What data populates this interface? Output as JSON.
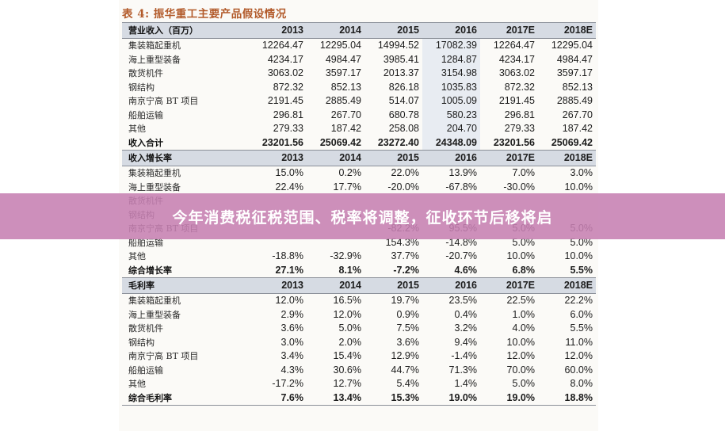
{
  "title": "表 4:  振华重工主要产品假设情况",
  "banner": "今年消费税征税范围、税率将调整，征收环节后移将启",
  "sections": [
    {
      "id": "revenue",
      "header": {
        "label": "营业收入（百万）",
        "years": [
          "2013",
          "2014",
          "2015",
          "2016",
          "2017E",
          "2018E"
        ]
      },
      "rows": [
        {
          "label": "集装箱起重机",
          "values": [
            "12264.47",
            "12295.04",
            "14994.52",
            "17082.39",
            "12264.47",
            "12295.04"
          ]
        },
        {
          "label": "海上重型装备",
          "values": [
            "4234.17",
            "4984.47",
            "3985.41",
            "1284.87",
            "4234.17",
            "4984.47"
          ]
        },
        {
          "label": "散货机件",
          "values": [
            "3063.02",
            "3597.17",
            "2013.37",
            "3154.98",
            "3063.02",
            "3597.17"
          ]
        },
        {
          "label": "钢结构",
          "values": [
            "872.32",
            "852.13",
            "826.18",
            "1035.83",
            "872.32",
            "852.13"
          ]
        },
        {
          "label": "南京宁高 BT 项目",
          "values": [
            "2191.45",
            "2885.49",
            "514.07",
            "1005.09",
            "2191.45",
            "2885.49"
          ]
        },
        {
          "label": "船舶运输",
          "values": [
            "296.81",
            "267.70",
            "680.78",
            "580.23",
            "296.81",
            "267.70"
          ]
        },
        {
          "label": "其他",
          "values": [
            "279.33",
            "187.42",
            "258.08",
            "204.70",
            "279.33",
            "187.42"
          ]
        }
      ],
      "total": {
        "label": "收入合计",
        "values": [
          "23201.56",
          "25069.42",
          "23272.40",
          "24348.09",
          "23201.56",
          "25069.42"
        ]
      }
    },
    {
      "id": "growth",
      "header": {
        "label": "收入增长率",
        "years": [
          "2013",
          "2014",
          "2015",
          "2016",
          "2017E",
          "2018E"
        ]
      },
      "rows": [
        {
          "label": "集装箱起重机",
          "values": [
            "15.0%",
            "0.2%",
            "22.0%",
            "13.9%",
            "7.0%",
            "3.0%"
          ]
        },
        {
          "label": "海上重型装备",
          "values": [
            "22.4%",
            "17.7%",
            "-20.0%",
            "-67.8%",
            "-30.0%",
            "10.0%"
          ]
        },
        {
          "label": "散货机件",
          "values": [
            "",
            "",
            "",
            "",
            "",
            ""
          ]
        },
        {
          "label": "钢结构",
          "values": [
            "",
            "-2.3%",
            "",
            "",
            "",
            ""
          ]
        },
        {
          "label": "南京宁高 BT 项目",
          "values": [
            "",
            "",
            "-82.2%",
            "95.5%",
            "5.0%",
            "5.0%"
          ]
        },
        {
          "label": "船舶运输",
          "values": [
            "",
            "",
            "154.3%",
            "-14.8%",
            "5.0%",
            "5.0%"
          ]
        },
        {
          "label": "其他",
          "values": [
            "-18.8%",
            "-32.9%",
            "37.7%",
            "-20.7%",
            "10.0%",
            "10.0%"
          ]
        }
      ],
      "total": {
        "label": "综合增长率",
        "values": [
          "27.1%",
          "8.1%",
          "-7.2%",
          "4.6%",
          "6.8%",
          "5.5%"
        ]
      }
    },
    {
      "id": "margin",
      "header": {
        "label": "毛利率",
        "years": [
          "2013",
          "2014",
          "2015",
          "2016",
          "2017E",
          "2018E"
        ]
      },
      "rows": [
        {
          "label": "集装箱起重机",
          "values": [
            "12.0%",
            "16.5%",
            "19.7%",
            "23.5%",
            "22.5%",
            "22.2%"
          ]
        },
        {
          "label": "海上重型装备",
          "values": [
            "2.9%",
            "12.0%",
            "0.9%",
            "0.4%",
            "1.0%",
            "6.0%"
          ]
        },
        {
          "label": "散货机件",
          "values": [
            "3.6%",
            "5.0%",
            "7.5%",
            "3.2%",
            "4.0%",
            "5.5%"
          ]
        },
        {
          "label": "钢结构",
          "values": [
            "3.0%",
            "2.0%",
            "3.6%",
            "9.4%",
            "10.0%",
            "11.0%"
          ]
        },
        {
          "label": "南京宁高 BT 项目",
          "values": [
            "3.4%",
            "15.4%",
            "12.9%",
            "-1.4%",
            "12.0%",
            "12.0%"
          ]
        },
        {
          "label": "船舶运输",
          "values": [
            "4.3%",
            "30.6%",
            "44.7%",
            "71.3%",
            "70.0%",
            "60.0%"
          ]
        },
        {
          "label": "其他",
          "values": [
            "-17.2%",
            "12.7%",
            "5.4%",
            "1.4%",
            "5.0%",
            "8.0%"
          ]
        }
      ],
      "total": {
        "label": "综合毛利率",
        "values": [
          "7.6%",
          "13.4%",
          "15.3%",
          "19.0%",
          "19.0%",
          "18.8%"
        ]
      }
    }
  ]
}
